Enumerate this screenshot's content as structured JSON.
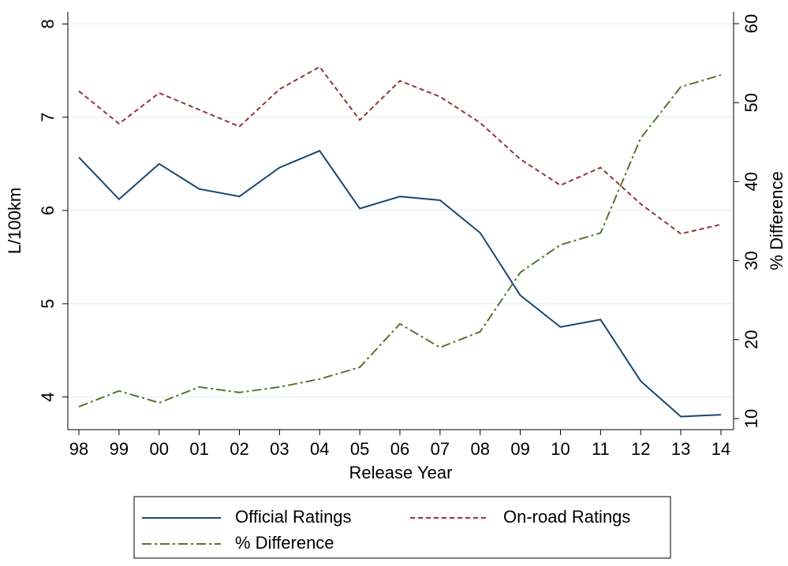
{
  "chart_data": {
    "type": "line",
    "x_label": "Release Year",
    "y_label": "L/100km",
    "y2_label": "% Difference",
    "categories": [
      "98",
      "99",
      "00",
      "01",
      "02",
      "03",
      "04",
      "05",
      "06",
      "07",
      "08",
      "09",
      "10",
      "11",
      "12",
      "13",
      "14"
    ],
    "series": [
      {
        "name": "Official Ratings",
        "color": "#1a476f",
        "dash": "solid",
        "values": [
          6.57,
          6.12,
          6.5,
          6.23,
          6.15,
          6.46,
          6.64,
          6.02,
          6.15,
          6.11,
          5.76,
          5.09,
          4.75,
          4.83,
          4.17,
          3.79,
          3.81
        ]
      },
      {
        "name": "On-road Ratings",
        "color": "#90353b",
        "dash": "dash",
        "values": [
          7.28,
          6.93,
          7.26,
          7.08,
          6.9,
          7.3,
          7.54,
          6.97,
          7.39,
          7.22,
          6.94,
          6.55,
          6.27,
          6.46,
          6.07,
          5.75,
          5.85
        ]
      },
      {
        "name": "% Difference",
        "color": "#55752f",
        "dash": "dashdot",
        "axis": "y2",
        "values": [
          11.5,
          13.5,
          12,
          14,
          13.3,
          14,
          15,
          16.5,
          22,
          19,
          21,
          28.5,
          32,
          33.5,
          45.5,
          52,
          53.5
        ]
      }
    ],
    "ylim": [
      3.65,
      8.13
    ],
    "yticks": [
      4,
      5,
      6,
      7,
      8
    ],
    "y2lim": [
      8.6,
      61.5
    ],
    "y2ticks": [
      10,
      20,
      30,
      40,
      50,
      60
    ],
    "grid": true
  }
}
